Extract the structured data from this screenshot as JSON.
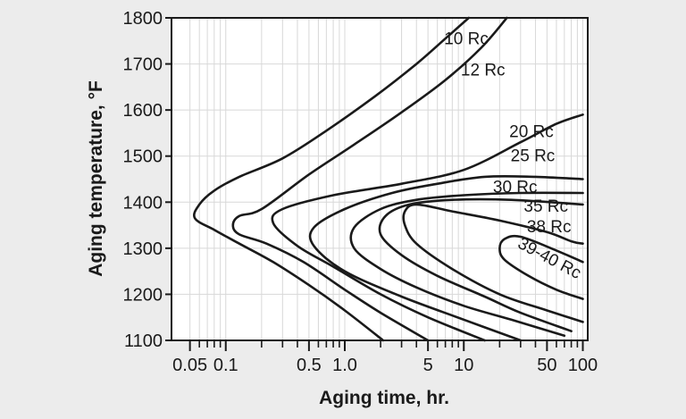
{
  "chart_data": {
    "type": "line",
    "xlabel": "Aging time, hr.",
    "ylabel": "Aging temperature, °F",
    "xscale": "log",
    "xlim": [
      0.035,
      110
    ],
    "ylim": [
      1100,
      1800
    ],
    "grid": true,
    "legend": "none",
    "colors": {
      "background": "#ececec",
      "plot": "#ffffff",
      "ink": "#1a1a1a",
      "grid": "#d8d8d8"
    },
    "x_ticks": [
      {
        "value": 0.05,
        "label": "0.05"
      },
      {
        "value": 0.1,
        "label": "0.1"
      },
      {
        "value": 0.5,
        "label": "0.5"
      },
      {
        "value": 1,
        "label": "1.0"
      },
      {
        "value": 5,
        "label": "5"
      },
      {
        "value": 10,
        "label": "10"
      },
      {
        "value": 50,
        "label": "50"
      },
      {
        "value": 100,
        "label": "100"
      }
    ],
    "x_minor_ticks": [
      0.06,
      0.07,
      0.08,
      0.09,
      0.2,
      0.3,
      0.4,
      0.6,
      0.7,
      0.8,
      0.9,
      2,
      3,
      4,
      6,
      7,
      8,
      9,
      20,
      30,
      40,
      60,
      70,
      80,
      90
    ],
    "y_ticks": [
      {
        "value": 1100,
        "label": "1100"
      },
      {
        "value": 1200,
        "label": "1200"
      },
      {
        "value": 1300,
        "label": "1300"
      },
      {
        "value": 1400,
        "label": "1400"
      },
      {
        "value": 1500,
        "label": "1500"
      },
      {
        "value": 1600,
        "label": "1600"
      },
      {
        "value": 1700,
        "label": "1700"
      },
      {
        "value": 1800,
        "label": "1800"
      }
    ],
    "series": [
      {
        "label": "10 Rc",
        "label_at": [
          10.5,
          1743
        ],
        "points": [
          [
            2.1,
            1100
          ],
          [
            1,
            1165
          ],
          [
            0.5,
            1220
          ],
          [
            0.25,
            1270
          ],
          [
            0.13,
            1310
          ],
          [
            0.08,
            1340
          ],
          [
            0.055,
            1365
          ],
          [
            0.06,
            1395
          ],
          [
            0.08,
            1425
          ],
          [
            0.13,
            1455
          ],
          [
            0.3,
            1495
          ],
          [
            0.7,
            1555
          ],
          [
            1.8,
            1630
          ],
          [
            4,
            1700
          ],
          [
            7,
            1755
          ],
          [
            11,
            1800
          ]
        ]
      },
      {
        "label": "12 Rc",
        "label_at": [
          14.5,
          1675
        ],
        "points": [
          [
            5,
            1100
          ],
          [
            2,
            1160
          ],
          [
            1,
            1210
          ],
          [
            0.45,
            1270
          ],
          [
            0.22,
            1310
          ],
          [
            0.13,
            1330
          ],
          [
            0.115,
            1350
          ],
          [
            0.13,
            1370
          ],
          [
            0.2,
            1385
          ],
          [
            0.5,
            1460
          ],
          [
            1.2,
            1525
          ],
          [
            3,
            1595
          ],
          [
            7,
            1665
          ],
          [
            14,
            1735
          ],
          [
            23,
            1800
          ]
        ]
      },
      {
        "label": "20 Rc",
        "label_at": [
          37,
          1541
        ],
        "points": [
          [
            15,
            1100
          ],
          [
            5,
            1150
          ],
          [
            2,
            1200
          ],
          [
            0.8,
            1260
          ],
          [
            0.4,
            1305
          ],
          [
            0.25,
            1355
          ],
          [
            0.3,
            1385
          ],
          [
            0.8,
            1415
          ],
          [
            3,
            1440
          ],
          [
            10,
            1470
          ],
          [
            30,
            1530
          ],
          [
            60,
            1570
          ],
          [
            100,
            1590
          ]
        ]
      },
      {
        "label": "25 Rc",
        "label_at": [
          38,
          1489
        ],
        "points": [
          [
            30,
            1100
          ],
          [
            10,
            1145
          ],
          [
            3,
            1195
          ],
          [
            1,
            1250
          ],
          [
            0.55,
            1305
          ],
          [
            0.55,
            1345
          ],
          [
            1,
            1385
          ],
          [
            2.5,
            1420
          ],
          [
            6,
            1440
          ],
          [
            15,
            1455
          ],
          [
            40,
            1455
          ],
          [
            100,
            1450
          ]
        ]
      },
      {
        "label": "30 Rc",
        "label_at": [
          27,
          1421
        ],
        "points": [
          [
            70,
            1110
          ],
          [
            25,
            1145
          ],
          [
            10,
            1175
          ],
          [
            4,
            1215
          ],
          [
            2,
            1255
          ],
          [
            1.2,
            1300
          ],
          [
            1.2,
            1345
          ],
          [
            2,
            1385
          ],
          [
            4,
            1405
          ],
          [
            10,
            1415
          ],
          [
            30,
            1420
          ],
          [
            100,
            1420
          ]
        ]
      },
      {
        "label": "35 Rc",
        "label_at": [
          49,
          1379
        ],
        "points": [
          [
            80,
            1120
          ],
          [
            30,
            1160
          ],
          [
            15,
            1195
          ],
          [
            6,
            1240
          ],
          [
            3,
            1285
          ],
          [
            2,
            1330
          ],
          [
            2.2,
            1370
          ],
          [
            3.5,
            1395
          ],
          [
            8,
            1405
          ],
          [
            25,
            1405
          ],
          [
            100,
            1395
          ]
        ]
      },
      {
        "label": "38 Rc",
        "label_at": [
          52,
          1335
        ],
        "points": [
          [
            100,
            1140
          ],
          [
            50,
            1165
          ],
          [
            20,
            1200
          ],
          [
            8,
            1255
          ],
          [
            4,
            1310
          ],
          [
            3.2,
            1350
          ],
          [
            3.2,
            1380
          ],
          [
            4,
            1395
          ],
          [
            8,
            1380
          ],
          [
            20,
            1360
          ],
          [
            50,
            1335
          ],
          [
            80,
            1315
          ],
          [
            100,
            1310
          ]
        ]
      },
      {
        "label": "39-40 Rc",
        "label_at": [
          50,
          1268
        ],
        "points": [
          [
            100,
            1190
          ],
          [
            60,
            1210
          ],
          [
            35,
            1240
          ],
          [
            22,
            1275
          ],
          [
            20,
            1300
          ],
          [
            22,
            1320
          ],
          [
            30,
            1325
          ],
          [
            60,
            1295
          ],
          [
            100,
            1270
          ]
        ]
      }
    ]
  }
}
